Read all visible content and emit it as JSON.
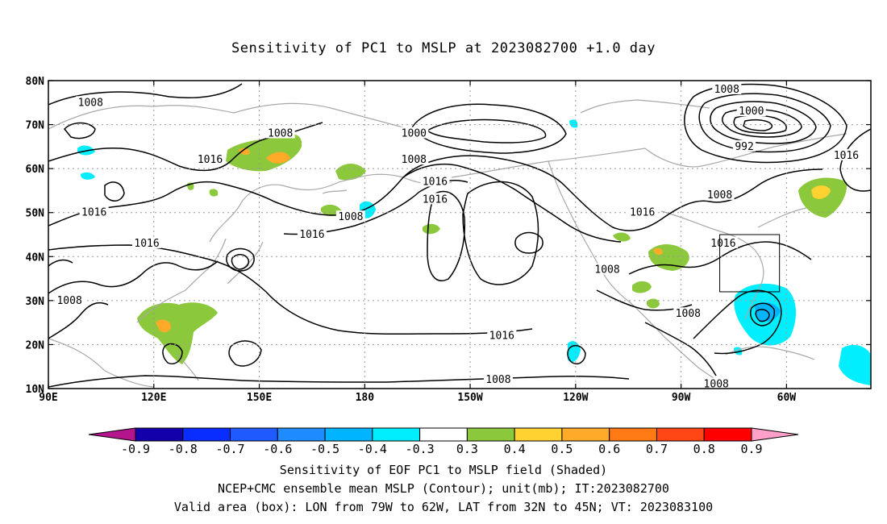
{
  "title": "Sensitivity of PC1 to MSLP at 2023082700 +1.0 day",
  "captions": {
    "line1": "Sensitivity of EOF PC1 to MSLP field (Shaded)",
    "line2": "NCEP+CMC ensemble mean MSLP (Contour); unit(mb); IT:2023082700",
    "line3": "Valid area (box): LON from 79W to 62W, LAT from 32N to 45N; VT: 2023083100"
  },
  "map": {
    "lon_labels": [
      "90E",
      "120E",
      "150E",
      "180",
      "150W",
      "120W",
      "90W",
      "60W"
    ],
    "lat_labels": [
      "10N",
      "20N",
      "30N",
      "40N",
      "50N",
      "60N",
      "70N",
      "80N"
    ],
    "lon_values": [
      90,
      120,
      150,
      180,
      210,
      240,
      270,
      300
    ],
    "lat_values": [
      10,
      20,
      30,
      40,
      50,
      60,
      70,
      80
    ],
    "lon_range": [
      90,
      324
    ],
    "lat_range": [
      10,
      80
    ],
    "valid_box": {
      "lon": [
        281,
        298
      ],
      "lat": [
        32,
        45
      ]
    },
    "contour_labels": [
      {
        "text": "1008",
        "lon": 102,
        "lat": 75
      },
      {
        "text": "1008",
        "lon": 156,
        "lat": 68
      },
      {
        "text": "1016",
        "lon": 136,
        "lat": 62
      },
      {
        "text": "1000",
        "lon": 194,
        "lat": 68
      },
      {
        "text": "1008",
        "lon": 194,
        "lat": 62
      },
      {
        "text": "1016",
        "lon": 200,
        "lat": 57
      },
      {
        "text": "1016",
        "lon": 200,
        "lat": 53
      },
      {
        "text": "1008",
        "lon": 176,
        "lat": 49
      },
      {
        "text": "1016",
        "lon": 103,
        "lat": 50
      },
      {
        "text": "1016",
        "lon": 118,
        "lat": 43
      },
      {
        "text": "1016",
        "lon": 165,
        "lat": 45
      },
      {
        "text": "1008",
        "lon": 96,
        "lat": 30
      },
      {
        "text": "1016",
        "lon": 219,
        "lat": 22
      },
      {
        "text": "1008",
        "lon": 218,
        "lat": 12
      },
      {
        "text": "1008",
        "lon": 249,
        "lat": 37
      },
      {
        "text": "1016",
        "lon": 259,
        "lat": 50
      },
      {
        "text": "1008",
        "lon": 272,
        "lat": 27
      },
      {
        "text": "1008",
        "lon": 283,
        "lat": 78
      },
      {
        "text": "1000",
        "lon": 290,
        "lat": 73
      },
      {
        "text": "992",
        "lon": 288,
        "lat": 65
      },
      {
        "text": "1008",
        "lon": 281,
        "lat": 54
      },
      {
        "text": "1016",
        "lon": 317,
        "lat": 63
      },
      {
        "text": "1016",
        "lon": 282,
        "lat": 43
      },
      {
        "text": "1008",
        "lon": 280,
        "lat": 11
      }
    ]
  },
  "colorbar": {
    "labels": [
      "-0.9",
      "-0.8",
      "-0.7",
      "-0.6",
      "-0.5",
      "-0.4",
      "-0.3",
      "0.3",
      "0.4",
      "0.5",
      "0.6",
      "0.7",
      "0.8",
      "0.9"
    ],
    "colors": [
      "#1400aa",
      "#0a2dff",
      "#1e5aff",
      "#1e8cff",
      "#00b4ff",
      "#00eeff",
      "#ffffff",
      "#8cc83c",
      "#ffd232",
      "#ffaa28",
      "#ff7a14",
      "#ff4614",
      "#ff0000"
    ],
    "low_end_color": "#b4148c",
    "high_end_color": "#ffa0c8"
  },
  "colors": {
    "coastline": "#a8a8a8",
    "contour": "#000000",
    "grid": "#9a9a9a"
  }
}
